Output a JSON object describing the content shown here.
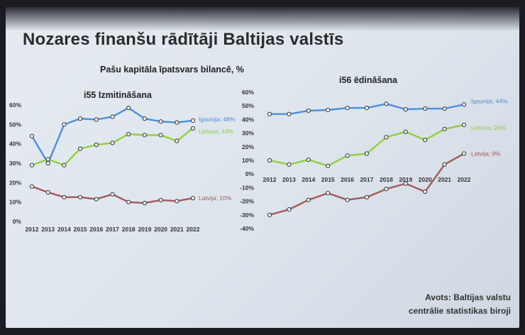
{
  "slide": {
    "title": "Nozares finanšu rādītāji Baltijas valstīs",
    "subtitle": "Pašu kapitāla īpatsvars bilancē, %",
    "source_line1": "Avots: Baltijas valstu",
    "source_line2": "centrālie statistikas biroji"
  },
  "chart_data": [
    {
      "type": "line",
      "title": "i55 Izmitināšana",
      "x": [
        "2012",
        "2013",
        "2014",
        "2015",
        "2016",
        "2017",
        "2018",
        "2019",
        "2020",
        "2021",
        "2022"
      ],
      "yticks": [
        "0%",
        "10%",
        "20%",
        "30%",
        "40%",
        "50%",
        "60%"
      ],
      "ylim": [
        0,
        60
      ],
      "grid": false,
      "series": [
        {
          "name": "Igaunija",
          "label": "Igaunija; 48%",
          "color": "#4a8fe0",
          "values": [
            44,
            30,
            50,
            53,
            52.5,
            54,
            58.5,
            53,
            51.5,
            51,
            52
          ]
        },
        {
          "name": "Lietuva",
          "label": "Lietuva; 44%",
          "color": "#8ed13a",
          "values": [
            29,
            32,
            29,
            37.5,
            39.5,
            40.5,
            45,
            44.5,
            44.5,
            41.5,
            48
          ]
        },
        {
          "name": "Latvija",
          "label": "Latvija; 10%",
          "color": "#a35a5a",
          "values": [
            18,
            15,
            12.5,
            12.5,
            11.5,
            14,
            10,
            9.5,
            11,
            10.5,
            12
          ]
        }
      ]
    },
    {
      "type": "line",
      "title": "i56 ēdināšana",
      "x": [
        "2012",
        "2013",
        "2014",
        "2015",
        "2016",
        "2017",
        "2018",
        "2019",
        "2020",
        "2021",
        "2022"
      ],
      "yticks": [
        "-40%",
        "-30%",
        "-20%",
        "-10%",
        "0%",
        "10%",
        "20%",
        "30%",
        "40%",
        "50%",
        "60%"
      ],
      "ylim": [
        -40,
        60
      ],
      "grid": false,
      "series": [
        {
          "name": "Igaunija",
          "label": "Igaunija; 44%",
          "color": "#4a8fe0",
          "values": [
            44,
            44,
            46.5,
            47,
            48.5,
            48.5,
            51.5,
            47.5,
            48,
            48,
            51
          ]
        },
        {
          "name": "Lietuva",
          "label": "Lietuva; 29%",
          "color": "#8ed13a",
          "values": [
            10,
            7,
            10.5,
            6,
            13.5,
            15,
            27,
            31,
            25,
            33,
            36
          ]
        },
        {
          "name": "Latvija",
          "label": "Latvija; 9%",
          "color": "#a35a5a",
          "values": [
            -30,
            -26,
            -19,
            -14,
            -19,
            -17,
            -11,
            -7,
            -13,
            7,
            15
          ]
        }
      ]
    }
  ]
}
